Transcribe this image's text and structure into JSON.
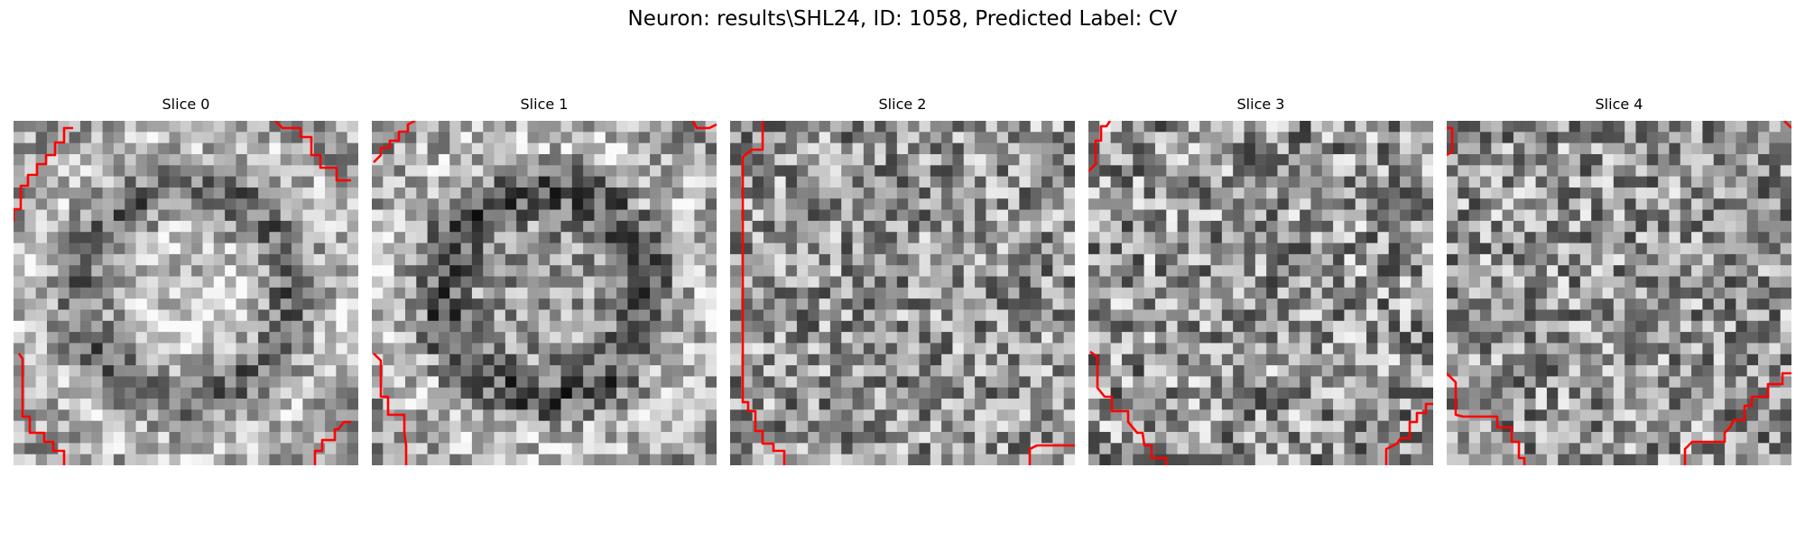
{
  "figure": {
    "title": "Neuron: results\\SHL24, ID: 1058, Predicted Label: CV"
  },
  "panels": [
    {
      "title": "Slice 0",
      "image": "grayscale-noisy-cell-slice",
      "seed": 11,
      "contrast": 0.55,
      "pattern": "bright-core-dark-ring"
    },
    {
      "title": "Slice 1",
      "image": "grayscale-noisy-cell-slice",
      "seed": 23,
      "contrast": 0.6,
      "pattern": "dark-ring"
    },
    {
      "title": "Slice 2",
      "image": "grayscale-noisy-cell-slice",
      "seed": 37,
      "contrast": 0.7,
      "pattern": "noisy"
    },
    {
      "title": "Slice 3",
      "image": "grayscale-noisy-cell-slice",
      "seed": 41,
      "contrast": 0.75,
      "pattern": "noisy"
    },
    {
      "title": "Slice 4",
      "image": "grayscale-noisy-cell-slice",
      "seed": 53,
      "contrast": 0.72,
      "pattern": "noisy"
    }
  ],
  "contour_color": "#ff0000"
}
